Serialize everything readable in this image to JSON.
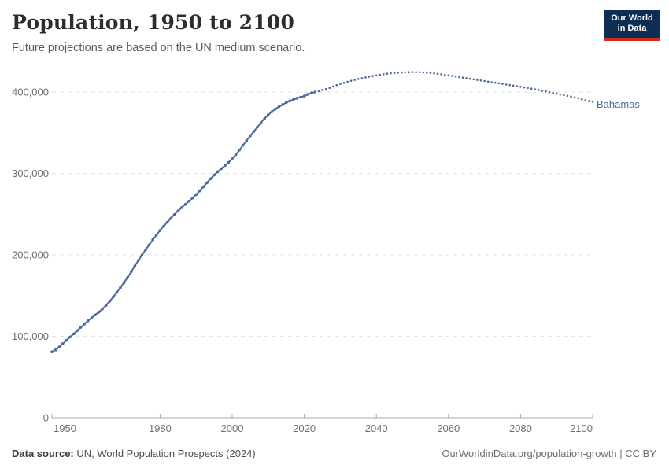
{
  "header": {
    "title": "Population, 1950 to 2100",
    "subtitle": "Future projections are based on the UN medium scenario.",
    "logo": {
      "line1": "Our World",
      "line2": "in Data",
      "bg_color": "#0D2D52",
      "accent_color": "#D32A1E"
    }
  },
  "chart_data": {
    "type": "line",
    "title": "Population, 1950 to 2100",
    "entity": "Bahamas",
    "xlabel": "",
    "ylabel": "",
    "xlim": [
      1950,
      2100
    ],
    "ylim": [
      0,
      428000
    ],
    "grid": "horizontal-dashed",
    "legend_position": "end-of-line-label",
    "line_color": "#4C6A9C",
    "x_ticks": [
      1950,
      1980,
      2000,
      2020,
      2040,
      2060,
      2080,
      2100
    ],
    "y_ticks": [
      0,
      100000,
      200000,
      300000,
      400000
    ],
    "y_tick_labels": [
      "0",
      "100,000",
      "200,000",
      "300,000",
      "400,000"
    ],
    "series": [
      {
        "name": "Bahamas — estimates",
        "style": "solid",
        "x": [
          1950,
          1955,
          1960,
          1965,
          1970,
          1975,
          1980,
          1985,
          1990,
          1995,
          2000,
          2005,
          2010,
          2015,
          2020,
          2023
        ],
        "values": [
          81000,
          99000,
          119000,
          138000,
          166000,
          200000,
          230000,
          254000,
          274000,
          298000,
          318000,
          346000,
          372000,
          387000,
          395000,
          400000
        ]
      },
      {
        "name": "Bahamas — UN medium projection",
        "style": "dotted",
        "x": [
          2024,
          2025,
          2030,
          2035,
          2040,
          2045,
          2050,
          2055,
          2060,
          2065,
          2070,
          2075,
          2080,
          2085,
          2090,
          2095,
          2100
        ],
        "values": [
          401000,
          402500,
          410000,
          416000,
          420500,
          423500,
          424500,
          423500,
          420500,
          417000,
          413500,
          410000,
          406500,
          402500,
          398000,
          393500,
          388000
        ]
      }
    ]
  },
  "footer": {
    "source_label": "Data source:",
    "source_text": " UN, World Population Prospects (2024)",
    "credit": "OurWorldinData.org/population-growth | CC BY"
  }
}
